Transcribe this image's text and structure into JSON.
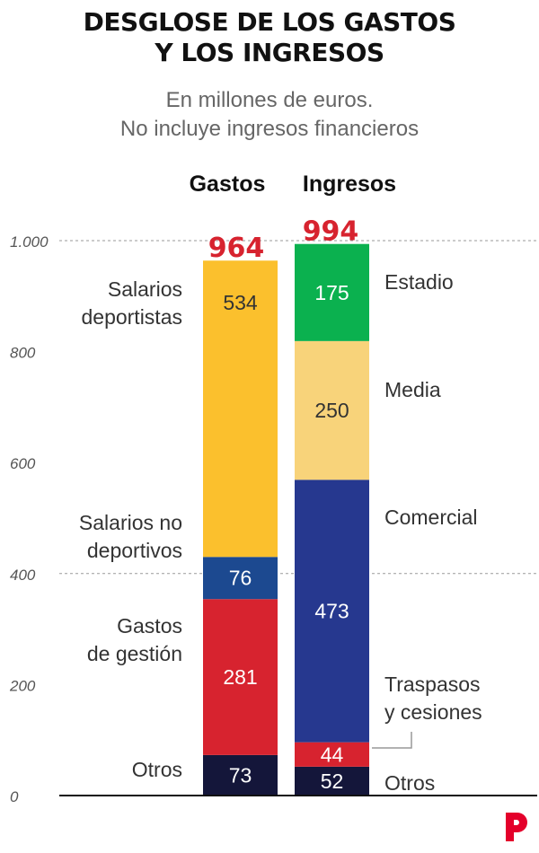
{
  "title_lines": [
    "DESGLOSE DE LOS GASTOS",
    "Y LOS INGRESOS"
  ],
  "subtitle_lines": [
    "En millones de euros.",
    "No incluye ingresos financieros"
  ],
  "colors": {
    "salarios_deportistas": "#fbc02d",
    "salarios_no_deportivos": "#1c4990",
    "gastos_gestion": "#d7232f",
    "otros": "#14163a",
    "estadio": "#0bb14f",
    "media": "#f8d37a",
    "comercial": "#26388f",
    "traspasos": "#d7232f",
    "total": "#d7232f",
    "gridline": "#9a9a9a",
    "axis_text": "#555555",
    "label_text": "#333333",
    "logo": "#e4002b"
  },
  "chart_data": {
    "type": "bar",
    "stacked": true,
    "title": "DESGLOSE DE LOS GASTOS Y LOS INGRESOS",
    "subtitle": "En millones de euros. No incluye ingresos financieros",
    "yticks": [
      {
        "value": 0,
        "label": "0"
      },
      {
        "value": 200,
        "label": "200"
      },
      {
        "value": 400,
        "label": "400"
      },
      {
        "value": 600,
        "label": "600"
      },
      {
        "value": 800,
        "label": "800"
      },
      {
        "value": 1000,
        "label": "1.000"
      }
    ],
    "gridlines": [
      400,
      1000
    ],
    "ylim": [
      0,
      1000
    ],
    "columns": [
      {
        "name": "Gastos",
        "total": 964,
        "side": "left",
        "segments": [
          {
            "key": "otros",
            "label": "Otros",
            "value": 73,
            "text_color": "#ffffff"
          },
          {
            "key": "gastos_gestion",
            "label": "Gastos de gestión",
            "value": 281,
            "text_color": "#ffffff"
          },
          {
            "key": "salarios_no_deportivos",
            "label": "Salarios no deportivos",
            "value": 76,
            "text_color": "#ffffff"
          },
          {
            "key": "salarios_deportistas",
            "label": "Salarios deportistas",
            "value": 534,
            "text_color": "#333333"
          }
        ]
      },
      {
        "name": "Ingresos",
        "total": 994,
        "side": "right",
        "segments": [
          {
            "key": "otros",
            "label": "Otros",
            "value": 52,
            "text_color": "#ffffff"
          },
          {
            "key": "traspasos",
            "label": "Traspasos y cesiones",
            "value": 44,
            "text_color": "#ffffff"
          },
          {
            "key": "comercial",
            "label": "Comercial",
            "value": 473,
            "text_color": "#ffffff"
          },
          {
            "key": "media",
            "label": "Media",
            "value": 250,
            "text_color": "#333333"
          },
          {
            "key": "estadio",
            "label": "Estadio",
            "value": 175,
            "text_color": "#ffffff"
          }
        ]
      }
    ]
  }
}
